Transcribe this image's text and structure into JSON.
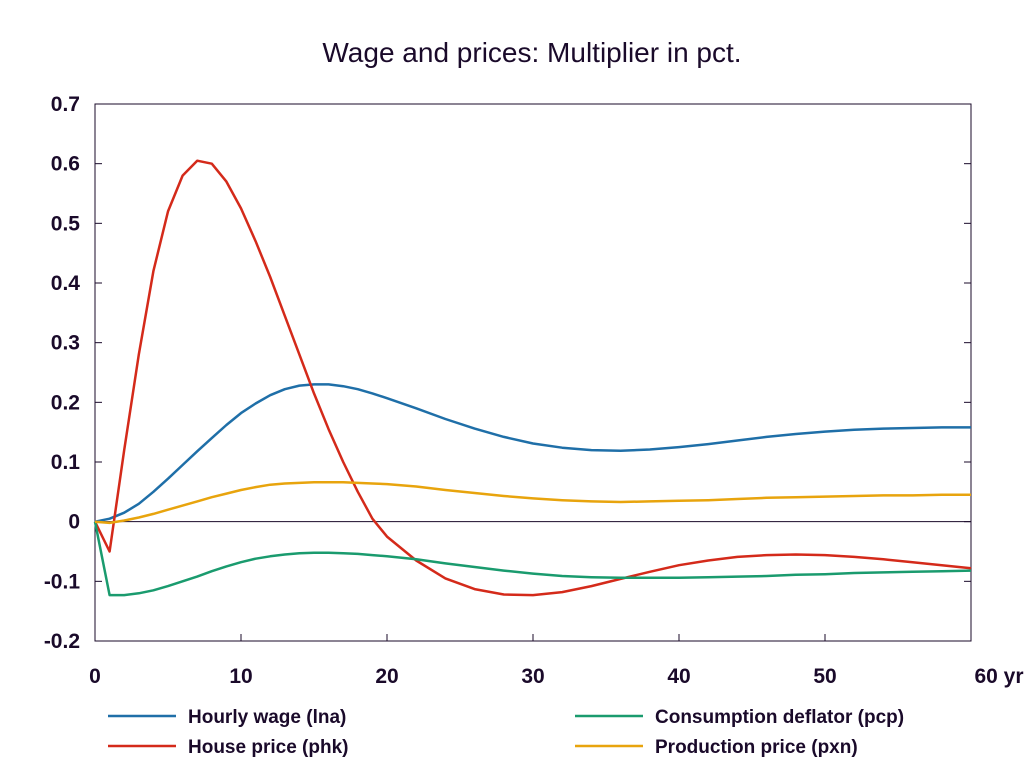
{
  "chart_data": {
    "type": "line",
    "title": "Wage and prices: Multiplier in pct.",
    "x_unit": "yr",
    "xlim": [
      0,
      60
    ],
    "ylim": [
      -0.2,
      0.7
    ],
    "x_ticks": [
      0,
      10,
      20,
      30,
      40,
      50,
      60
    ],
    "x_tick_labels": [
      "0",
      "10",
      "20",
      "30",
      "40",
      "50",
      "60 yr"
    ],
    "y_ticks": [
      -0.2,
      -0.1,
      0,
      0.1,
      0.2,
      0.3,
      0.4,
      0.5,
      0.6,
      0.7
    ],
    "y_tick_labels": [
      "-0.2",
      "-0.1",
      "0",
      "0.1",
      "0.2",
      "0.3",
      "0.4",
      "0.5",
      "0.6",
      "0.7"
    ],
    "grid": false,
    "legend_position": "bottom",
    "series": [
      {
        "name": "Hourly wage (lna)",
        "color": "#1f6fa8",
        "x": [
          0,
          1,
          2,
          3,
          4,
          5,
          6,
          7,
          8,
          9,
          10,
          11,
          12,
          13,
          14,
          15,
          16,
          17,
          18,
          19,
          20,
          22,
          24,
          26,
          28,
          30,
          32,
          34,
          36,
          38,
          40,
          42,
          44,
          46,
          48,
          50,
          52,
          54,
          56,
          58,
          60
        ],
        "y": [
          0,
          0.005,
          0.015,
          0.03,
          0.05,
          0.072,
          0.095,
          0.118,
          0.14,
          0.162,
          0.182,
          0.198,
          0.212,
          0.222,
          0.228,
          0.23,
          0.23,
          0.227,
          0.222,
          0.215,
          0.207,
          0.19,
          0.172,
          0.156,
          0.142,
          0.131,
          0.124,
          0.12,
          0.119,
          0.121,
          0.125,
          0.13,
          0.136,
          0.142,
          0.147,
          0.151,
          0.154,
          0.156,
          0.157,
          0.158,
          0.158
        ]
      },
      {
        "name": "House price (phk)",
        "color": "#d42a1a",
        "x": [
          0,
          1,
          2,
          3,
          4,
          5,
          6,
          7,
          8,
          9,
          10,
          11,
          12,
          13,
          14,
          15,
          16,
          17,
          18,
          19,
          20,
          22,
          24,
          26,
          28,
          30,
          32,
          34,
          36,
          38,
          40,
          42,
          44,
          46,
          48,
          50,
          52,
          54,
          56,
          58,
          60
        ],
        "y": [
          0,
          -0.05,
          0.12,
          0.28,
          0.42,
          0.52,
          0.58,
          0.605,
          0.6,
          0.57,
          0.525,
          0.47,
          0.41,
          0.345,
          0.28,
          0.215,
          0.155,
          0.1,
          0.05,
          0.005,
          -0.025,
          -0.065,
          -0.095,
          -0.113,
          -0.122,
          -0.123,
          -0.118,
          -0.108,
          -0.096,
          -0.084,
          -0.073,
          -0.065,
          -0.059,
          -0.056,
          -0.055,
          -0.056,
          -0.059,
          -0.063,
          -0.068,
          -0.073,
          -0.078
        ]
      },
      {
        "name": "Consumption deflator (pcp)",
        "color": "#1a9b6e",
        "x": [
          0,
          1,
          2,
          3,
          4,
          5,
          6,
          7,
          8,
          9,
          10,
          11,
          12,
          13,
          14,
          15,
          16,
          17,
          18,
          19,
          20,
          22,
          24,
          26,
          28,
          30,
          32,
          34,
          36,
          38,
          40,
          42,
          44,
          46,
          48,
          50,
          52,
          54,
          56,
          58,
          60
        ],
        "y": [
          0,
          -0.123,
          -0.123,
          -0.12,
          -0.115,
          -0.108,
          -0.1,
          -0.092,
          -0.083,
          -0.075,
          -0.068,
          -0.062,
          -0.058,
          -0.055,
          -0.053,
          -0.052,
          -0.052,
          -0.053,
          -0.054,
          -0.056,
          -0.058,
          -0.063,
          -0.07,
          -0.076,
          -0.082,
          -0.087,
          -0.091,
          -0.093,
          -0.094,
          -0.094,
          -0.094,
          -0.093,
          -0.092,
          -0.091,
          -0.089,
          -0.088,
          -0.086,
          -0.085,
          -0.084,
          -0.083,
          -0.082
        ]
      },
      {
        "name": "Production price (pxn)",
        "color": "#e8a40d",
        "x": [
          0,
          1,
          2,
          3,
          4,
          5,
          6,
          7,
          8,
          9,
          10,
          11,
          12,
          13,
          14,
          15,
          16,
          17,
          18,
          19,
          20,
          22,
          24,
          26,
          28,
          30,
          32,
          34,
          36,
          38,
          40,
          42,
          44,
          46,
          48,
          50,
          52,
          54,
          56,
          58,
          60
        ],
        "y": [
          0,
          -0.002,
          0.002,
          0.007,
          0.013,
          0.02,
          0.027,
          0.034,
          0.041,
          0.047,
          0.053,
          0.058,
          0.062,
          0.064,
          0.065,
          0.066,
          0.066,
          0.066,
          0.065,
          0.064,
          0.063,
          0.059,
          0.053,
          0.048,
          0.043,
          0.039,
          0.036,
          0.034,
          0.033,
          0.034,
          0.035,
          0.036,
          0.038,
          0.04,
          0.041,
          0.042,
          0.043,
          0.044,
          0.044,
          0.045,
          0.045
        ]
      }
    ]
  }
}
